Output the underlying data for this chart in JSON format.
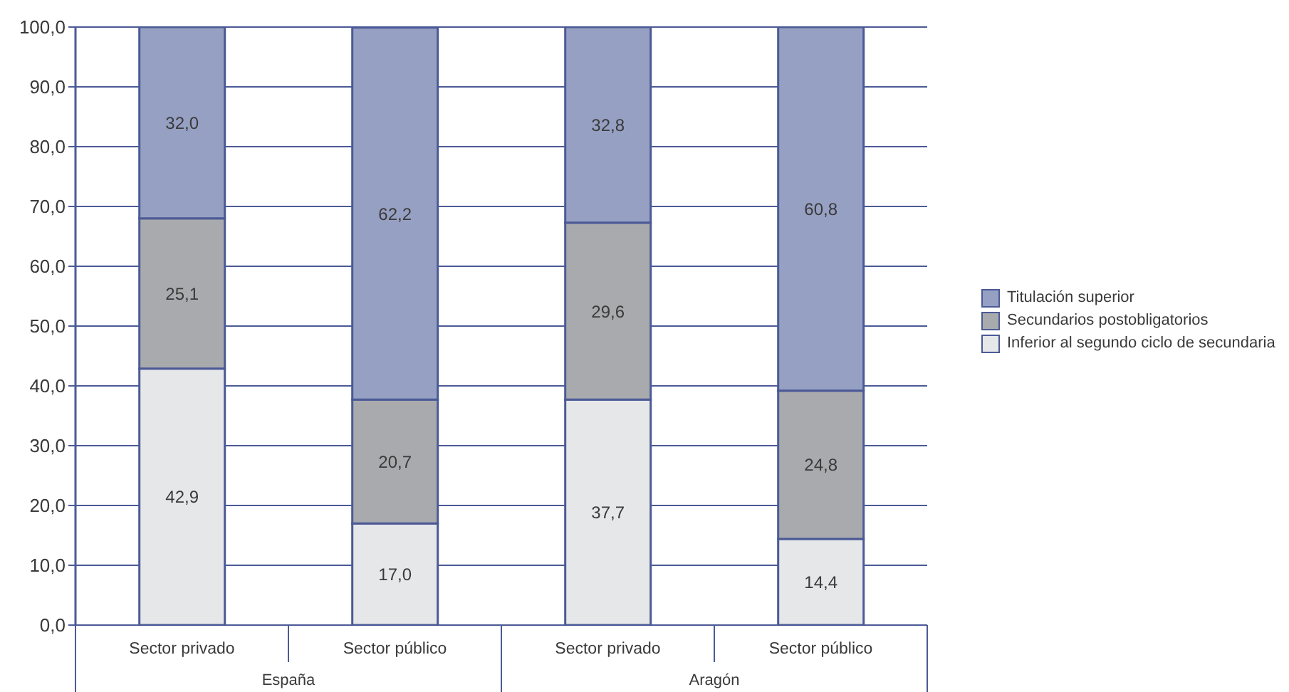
{
  "chart_data": {
    "type": "bar",
    "stacked": true,
    "categories": [
      "Sector privado",
      "Sector público",
      "Sector privado",
      "Sector público"
    ],
    "series": [
      {
        "name": "Inferior al segundo ciclo de secundaria",
        "color": "#e6e7e9",
        "values": [
          42.9,
          17.0,
          37.7,
          14.4
        ],
        "value_labels": [
          "42,9",
          "17,0",
          "37,7",
          "14,4"
        ]
      },
      {
        "name": "Secundarios postobligatorios",
        "color": "#a9aaad",
        "values": [
          25.1,
          20.7,
          29.6,
          24.8
        ],
        "value_labels": [
          "25,1",
          "20,7",
          "29,6",
          "24,8"
        ]
      },
      {
        "name": "Titulación superior",
        "color": "#96a0c3",
        "values": [
          32.0,
          62.2,
          32.8,
          60.8
        ],
        "value_labels": [
          "32,0",
          "62,2",
          "32,8",
          "60,8"
        ]
      }
    ],
    "ylim": [
      0,
      100
    ],
    "yticks": [
      {
        "value": 0,
        "label": "0,0"
      },
      {
        "value": 10,
        "label": "10,0"
      },
      {
        "value": 20,
        "label": "20,0"
      },
      {
        "value": 30,
        "label": "30,0"
      },
      {
        "value": 40,
        "label": "40,0"
      },
      {
        "value": 50,
        "label": "50,0"
      },
      {
        "value": 60,
        "label": "60,0"
      },
      {
        "value": 70,
        "label": "70,0"
      },
      {
        "value": 80,
        "label": "80,0"
      },
      {
        "value": 90,
        "label": "90,0"
      },
      {
        "value": 100,
        "label": "100,0"
      }
    ],
    "grid": "y",
    "legend": "right",
    "annotations": [
      "España",
      "Aragón"
    ]
  }
}
